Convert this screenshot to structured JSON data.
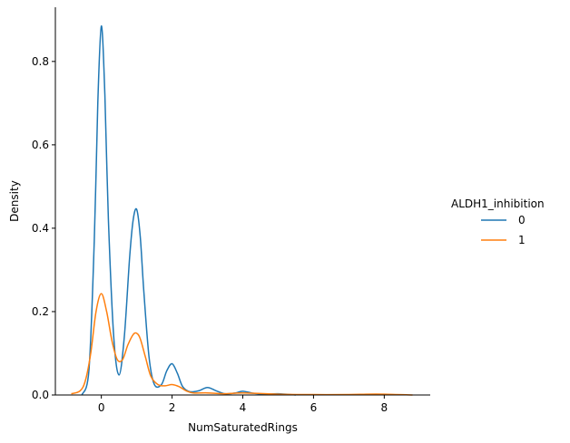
{
  "chart_data": {
    "type": "line",
    "subtype": "kde",
    "title": "",
    "xlabel": "NumSaturatedRings",
    "ylabel": "Density",
    "xlim": [
      -1.3,
      9.3
    ],
    "ylim": [
      0,
      0.93
    ],
    "xticks": [
      0,
      2,
      4,
      6,
      8
    ],
    "yticks": [
      0.0,
      0.2,
      0.4,
      0.6,
      0.8
    ],
    "xtick_labels": [
      "0",
      "2",
      "4",
      "6",
      "8"
    ],
    "ytick_labels": [
      "0.0",
      "0.2",
      "0.4",
      "0.6",
      "0.8"
    ],
    "grid": false,
    "legend": {
      "title": "ALDH1_inhibition",
      "placement": "outside-right"
    },
    "series": [
      {
        "name": "0",
        "color": "#1f77b4",
        "x": [
          -0.55,
          -0.35,
          -0.2,
          -0.1,
          0.0,
          0.1,
          0.2,
          0.35,
          0.5,
          0.65,
          0.8,
          0.9,
          1.0,
          1.1,
          1.2,
          1.35,
          1.5,
          1.7,
          1.85,
          2.0,
          2.15,
          2.3,
          2.5,
          2.75,
          3.0,
          3.25,
          3.5,
          3.8,
          4.0,
          4.3,
          4.6,
          5.0,
          5.5
        ],
        "y": [
          0.0,
          0.06,
          0.37,
          0.7,
          0.885,
          0.72,
          0.42,
          0.14,
          0.048,
          0.14,
          0.33,
          0.42,
          0.445,
          0.38,
          0.25,
          0.09,
          0.025,
          0.025,
          0.058,
          0.075,
          0.052,
          0.02,
          0.008,
          0.01,
          0.018,
          0.01,
          0.003,
          0.005,
          0.009,
          0.004,
          0.002,
          0.003,
          0.0
        ]
      },
      {
        "name": "1",
        "color": "#ff7f0e",
        "x": [
          -0.85,
          -0.6,
          -0.45,
          -0.3,
          -0.15,
          0.0,
          0.15,
          0.3,
          0.45,
          0.6,
          0.75,
          0.9,
          1.0,
          1.1,
          1.25,
          1.4,
          1.6,
          1.8,
          2.0,
          2.2,
          2.4,
          2.6,
          3.0,
          3.5,
          4.0,
          5.0,
          6.0,
          7.0,
          7.5,
          8.0,
          8.8
        ],
        "y": [
          0.003,
          0.01,
          0.035,
          0.1,
          0.2,
          0.243,
          0.2,
          0.13,
          0.085,
          0.085,
          0.12,
          0.145,
          0.148,
          0.135,
          0.09,
          0.045,
          0.025,
          0.022,
          0.025,
          0.02,
          0.01,
          0.005,
          0.005,
          0.003,
          0.005,
          0.002,
          0.001,
          0.001,
          0.002,
          0.002,
          0.0
        ]
      }
    ]
  }
}
